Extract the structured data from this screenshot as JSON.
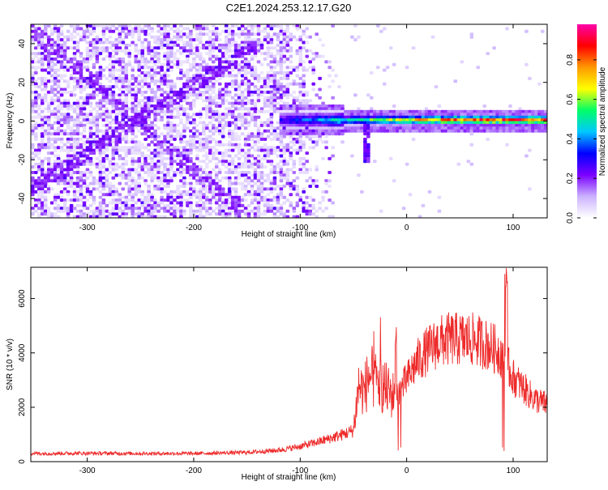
{
  "figure": {
    "title": "C2E1.2024.253.12.17.G20"
  },
  "chart_data": [
    {
      "type": "heatmap",
      "xlabel": "Height of straight line (km)",
      "ylabel": "Frequency (Hz)",
      "xlim": [
        -353,
        132
      ],
      "ylim": [
        -50,
        50
      ],
      "xticks": [
        -300,
        -200,
        -100,
        0,
        100
      ],
      "yticks": [
        -40,
        -20,
        0,
        20,
        40
      ],
      "colorbar": {
        "label": "Normalized spectral amplitude",
        "range": [
          0,
          0.98
        ],
        "ticks": [
          "0.0",
          "0.2",
          "0.4",
          "0.6",
          "0.8"
        ],
        "colormap": [
          "#ffffff",
          "#cbb2ff",
          "#7a00ff",
          "#0000ff",
          "#00c8ff",
          "#00ff66",
          "#ffff00",
          "#ff9900",
          "#ff0000",
          "#ff00aa"
        ]
      },
      "signal": {
        "center_frequency_hz": 0.5,
        "start_height_km": -120,
        "peak_height_km": 90,
        "peak_amplitude": 0.95,
        "noise_region_km": [
          -353,
          -68
        ]
      }
    },
    {
      "type": "line",
      "xlabel": "Height of straight line (km)",
      "ylabel": "SNR (10 * v/v)",
      "xlim": [
        -353,
        132
      ],
      "ylim": [
        0,
        7150
      ],
      "xticks": [
        -300,
        -200,
        -100,
        0,
        100
      ],
      "yticks": [
        0,
        2000,
        4000,
        6000
      ],
      "series": [
        {
          "color": "#ee2a2a",
          "x": [
            -353,
            -300,
            -250,
            -200,
            -150,
            -120,
            -100,
            -80,
            -60,
            -50,
            -45,
            -40,
            -35,
            -30,
            -20,
            -15,
            -10,
            0,
            10,
            20,
            30,
            40,
            50,
            60,
            70,
            80,
            85,
            88,
            90,
            92,
            95,
            100,
            110,
            120,
            132
          ],
          "y": [
            300,
            310,
            300,
            300,
            340,
            420,
            560,
            760,
            1000,
            1150,
            2800,
            2600,
            3200,
            3000,
            2700,
            2500,
            2400,
            3000,
            3700,
            4100,
            4400,
            4500,
            4500,
            4500,
            4400,
            4200,
            4100,
            4000,
            3900,
            3800,
            3500,
            3100,
            2700,
            2300,
            2100
          ]
        }
      ]
    }
  ]
}
